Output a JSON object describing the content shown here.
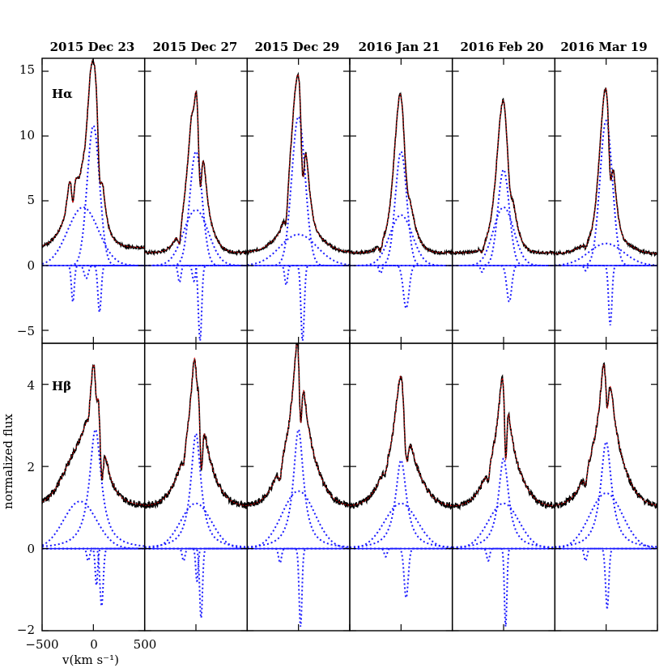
{
  "chart_data": {
    "type": "line",
    "dates": [
      "2015 Dec 23",
      "2015 Dec 27",
      "2015 Dec 29",
      "2016 Jan 21",
      "2016 Feb 20",
      "2016 Mar 19"
    ],
    "ylabel": "normalized flux",
    "xlabel": "v(km s⁻¹)",
    "xlim": [
      -500,
      500
    ],
    "x_ticks": [
      -500,
      0,
      500
    ],
    "x_tick_labels": [
      "−500",
      "0",
      "500"
    ],
    "colors": {
      "observed": "#000000",
      "fit": "#e00000",
      "components": "#1a1aff",
      "baseline": "#1a1aff"
    },
    "rows": [
      {
        "line": "Hα",
        "ylim": [
          -6,
          16
        ],
        "y_ticks": [
          -5,
          0,
          5,
          10,
          15
        ],
        "y_tick_labels": [
          "−5",
          "0",
          "5",
          "10",
          "15"
        ],
        "panels": [
          {
            "continuum": 1.4,
            "left_bump": {
              "v": -210,
              "amp": 2.7,
              "w": 35
            },
            "components": [
              {
                "name": "narrow",
                "v": 0,
                "amp": 10.8,
                "w": 60,
                "type": "gauss"
              },
              {
                "name": "broad",
                "v": -100,
                "amp": 4.5,
                "w": 150,
                "type": "gauss"
              },
              {
                "name": "absorption-1",
                "v": -200,
                "amp": -2.8,
                "w": 14,
                "type": "gauss"
              },
              {
                "name": "absorption-2",
                "v": -70,
                "amp": -1.0,
                "w": 20,
                "type": "gauss"
              },
              {
                "name": "absorption-3",
                "v": 60,
                "amp": -3.6,
                "w": 16,
                "type": "gauss"
              }
            ]
          },
          {
            "continuum": 1.0,
            "components": [
              {
                "name": "narrow",
                "v": 0,
                "amp": 8.8,
                "w": 60,
                "type": "gauss"
              },
              {
                "name": "broad",
                "v": 0,
                "amp": 4.3,
                "w": 120,
                "type": "gauss"
              },
              {
                "name": "absorption-1",
                "v": -160,
                "amp": -1.3,
                "w": 14,
                "type": "gauss"
              },
              {
                "name": "absorption-2",
                "v": -20,
                "amp": -1.2,
                "w": 14,
                "type": "gauss"
              },
              {
                "name": "absorption-3",
                "v": 40,
                "amp": -5.8,
                "w": 16,
                "type": "gauss"
              }
            ]
          },
          {
            "continuum": 1.0,
            "components": [
              {
                "name": "narrow",
                "v": 0,
                "amp": 11.5,
                "w": 65,
                "type": "gauss"
              },
              {
                "name": "broad",
                "v": 0,
                "amp": 2.4,
                "w": 180,
                "type": "gauss"
              },
              {
                "name": "absorption-1",
                "v": -120,
                "amp": -1.5,
                "w": 14,
                "type": "gauss"
              },
              {
                "name": "absorption-3",
                "v": 40,
                "amp": -5.8,
                "w": 16,
                "type": "gauss"
              }
            ]
          },
          {
            "continuum": 1.0,
            "components": [
              {
                "name": "narrow",
                "v": 0,
                "amp": 8.8,
                "w": 55,
                "type": "gauss"
              },
              {
                "name": "broad",
                "v": 0,
                "amp": 3.9,
                "w": 110,
                "type": "gauss"
              },
              {
                "name": "absorption-1",
                "v": -200,
                "amp": -0.6,
                "w": 14,
                "type": "gauss"
              },
              {
                "name": "absorption-3",
                "v": 50,
                "amp": -3.3,
                "w": 28,
                "type": "gauss"
              }
            ]
          },
          {
            "continuum": 1.0,
            "components": [
              {
                "name": "narrow",
                "v": 0,
                "amp": 7.4,
                "w": 55,
                "type": "gauss"
              },
              {
                "name": "broad",
                "v": 0,
                "amp": 4.5,
                "w": 100,
                "type": "gauss"
              },
              {
                "name": "absorption-1",
                "v": -210,
                "amp": -0.5,
                "w": 14,
                "type": "gauss"
              },
              {
                "name": "absorption-3",
                "v": 55,
                "amp": -2.8,
                "w": 24,
                "type": "gauss"
              }
            ]
          },
          {
            "continuum": 0.9,
            "components": [
              {
                "name": "narrow",
                "v": 0,
                "amp": 11.2,
                "w": 60,
                "type": "gauss"
              },
              {
                "name": "broad",
                "v": 0,
                "amp": 1.7,
                "w": 170,
                "type": "gauss"
              },
              {
                "name": "absorption-1",
                "v": -200,
                "amp": -0.4,
                "w": 14,
                "type": "gauss"
              },
              {
                "name": "absorption-3",
                "v": 40,
                "amp": -4.6,
                "w": 16,
                "type": "gauss"
              }
            ]
          }
        ]
      },
      {
        "line": "Hβ",
        "ylim": [
          -2,
          5
        ],
        "y_ticks": [
          -2,
          0,
          2,
          4
        ],
        "y_tick_labels": [
          "−2",
          "0",
          "2",
          "4"
        ],
        "panels": [
          {
            "continuum": 1.0,
            "components": [
              {
                "name": "narrow",
                "v": 20,
                "amp": 2.9,
                "w": 70,
                "type": "lorentz"
              },
              {
                "name": "broad",
                "v": -130,
                "amp": 1.15,
                "w": 160,
                "type": "gauss"
              },
              {
                "name": "absorption-2",
                "v": -50,
                "amp": -0.3,
                "w": 14,
                "type": "gauss"
              },
              {
                "name": "absorption-3",
                "v": 30,
                "amp": -0.9,
                "w": 12,
                "type": "gauss"
              },
              {
                "name": "absorption-4",
                "v": 80,
                "amp": -1.4,
                "w": 16,
                "type": "gauss"
              }
            ]
          },
          {
            "continuum": 1.0,
            "components": [
              {
                "name": "narrow",
                "v": 0,
                "amp": 2.8,
                "w": 60,
                "type": "lorentz"
              },
              {
                "name": "broad",
                "v": 0,
                "amp": 1.1,
                "w": 150,
                "type": "gauss"
              },
              {
                "name": "absorption-1",
                "v": -120,
                "amp": -0.3,
                "w": 14,
                "type": "gauss"
              },
              {
                "name": "absorption-3",
                "v": 10,
                "amp": -0.8,
                "w": 12,
                "type": "gauss"
              },
              {
                "name": "absorption-4",
                "v": 50,
                "amp": -1.7,
                "w": 14,
                "type": "gauss"
              }
            ]
          },
          {
            "continuum": 1.0,
            "components": [
              {
                "name": "narrow",
                "v": 0,
                "amp": 2.9,
                "w": 60,
                "type": "lorentz"
              },
              {
                "name": "broad",
                "v": 0,
                "amp": 1.4,
                "w": 160,
                "type": "gauss"
              },
              {
                "name": "absorption-1",
                "v": -180,
                "amp": -0.35,
                "w": 14,
                "type": "gauss"
              },
              {
                "name": "absorption-3",
                "v": 20,
                "amp": -1.9,
                "w": 14,
                "type": "gauss"
              }
            ]
          },
          {
            "continuum": 1.0,
            "components": [
              {
                "name": "narrow",
                "v": 0,
                "amp": 2.15,
                "w": 65,
                "type": "lorentz"
              },
              {
                "name": "broad",
                "v": 0,
                "amp": 1.1,
                "w": 160,
                "type": "gauss"
              },
              {
                "name": "absorption-1",
                "v": -150,
                "amp": -0.2,
                "w": 14,
                "type": "gauss"
              },
              {
                "name": "absorption-3",
                "v": 50,
                "amp": -1.2,
                "w": 20,
                "type": "gauss"
              }
            ]
          },
          {
            "continuum": 1.0,
            "components": [
              {
                "name": "narrow",
                "v": 0,
                "amp": 2.2,
                "w": 60,
                "type": "lorentz"
              },
              {
                "name": "broad",
                "v": 0,
                "amp": 1.1,
                "w": 150,
                "type": "gauss"
              },
              {
                "name": "absorption-1",
                "v": -150,
                "amp": -0.3,
                "w": 14,
                "type": "gauss"
              },
              {
                "name": "absorption-3",
                "v": 20,
                "amp": -1.9,
                "w": 12,
                "type": "gauss"
              }
            ]
          },
          {
            "continuum": 1.0,
            "components": [
              {
                "name": "narrow",
                "v": 0,
                "amp": 2.6,
                "w": 65,
                "type": "lorentz"
              },
              {
                "name": "broad",
                "v": 0,
                "amp": 1.35,
                "w": 160,
                "type": "gauss"
              },
              {
                "name": "absorption-1",
                "v": -200,
                "amp": -0.3,
                "w": 14,
                "type": "gauss"
              },
              {
                "name": "absorption-3",
                "v": 10,
                "amp": -1.45,
                "w": 16,
                "type": "gauss"
              }
            ]
          }
        ]
      }
    ]
  }
}
